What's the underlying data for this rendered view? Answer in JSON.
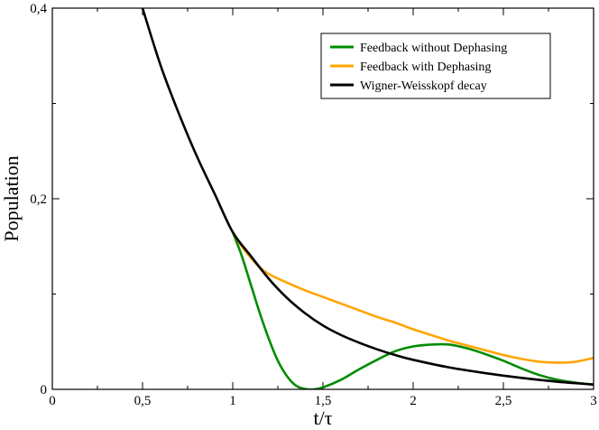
{
  "chart_data": {
    "type": "line",
    "title": "",
    "xlabel": "t/τ",
    "ylabel": "Population",
    "xlim": [
      0,
      3
    ],
    "ylim": [
      0,
      0.4
    ],
    "grid": false,
    "legend_position": "top-right",
    "x_ticks": [
      {
        "value": 0,
        "label": "0"
      },
      {
        "value": 0.5,
        "label": "0,5"
      },
      {
        "value": 1,
        "label": "1"
      },
      {
        "value": 1.5,
        "label": "1,5"
      },
      {
        "value": 2,
        "label": "2"
      },
      {
        "value": 2.5,
        "label": "2,5"
      },
      {
        "value": 3,
        "label": "3"
      }
    ],
    "y_ticks": [
      {
        "value": 0,
        "label": "0"
      },
      {
        "value": 0.2,
        "label": "0,2"
      },
      {
        "value": 0.4,
        "label": "0,4"
      }
    ],
    "series": [
      {
        "name": "Feedback without Dephasing",
        "color": "#008c00",
        "x": [
          1.0,
          1.05,
          1.1,
          1.15,
          1.2,
          1.25,
          1.3,
          1.35,
          1.4,
          1.45,
          1.5,
          1.6,
          1.7,
          1.8,
          1.9,
          2.0,
          2.1,
          2.2,
          2.3,
          2.4,
          2.5,
          2.6,
          2.7,
          2.8,
          2.9,
          3.0
        ],
        "y": [
          0.165,
          0.14,
          0.11,
          0.08,
          0.053,
          0.03,
          0.014,
          0.004,
          0.0005,
          0.0,
          0.002,
          0.01,
          0.021,
          0.031,
          0.04,
          0.045,
          0.047,
          0.047,
          0.043,
          0.037,
          0.03,
          0.022,
          0.015,
          0.01,
          0.007,
          0.005
        ]
      },
      {
        "name": "Feedback with Dephasing",
        "color": "#ffa500",
        "x": [
          1.0,
          1.05,
          1.1,
          1.15,
          1.2,
          1.3,
          1.4,
          1.5,
          1.6,
          1.7,
          1.8,
          1.9,
          2.0,
          2.1,
          2.2,
          2.3,
          2.4,
          2.5,
          2.6,
          2.7,
          2.8,
          2.9,
          3.0
        ],
        "y": [
          0.165,
          0.15,
          0.138,
          0.128,
          0.121,
          0.112,
          0.104,
          0.097,
          0.09,
          0.083,
          0.076,
          0.07,
          0.063,
          0.057,
          0.051,
          0.046,
          0.041,
          0.036,
          0.032,
          0.029,
          0.028,
          0.029,
          0.033
        ]
      },
      {
        "name": "Wigner-Weisskopf decay",
        "color": "#000000",
        "x": [
          0.5,
          0.6,
          0.7,
          0.8,
          0.9,
          1.0,
          1.1,
          1.2,
          1.3,
          1.4,
          1.5,
          1.6,
          1.7,
          1.8,
          1.9,
          2.0,
          2.2,
          2.4,
          2.6,
          2.8,
          3.0
        ],
        "y": [
          0.4,
          0.34,
          0.29,
          0.245,
          0.205,
          0.165,
          0.14,
          0.116,
          0.096,
          0.08,
          0.067,
          0.057,
          0.049,
          0.042,
          0.036,
          0.031,
          0.023,
          0.017,
          0.012,
          0.008,
          0.005
        ]
      }
    ]
  }
}
